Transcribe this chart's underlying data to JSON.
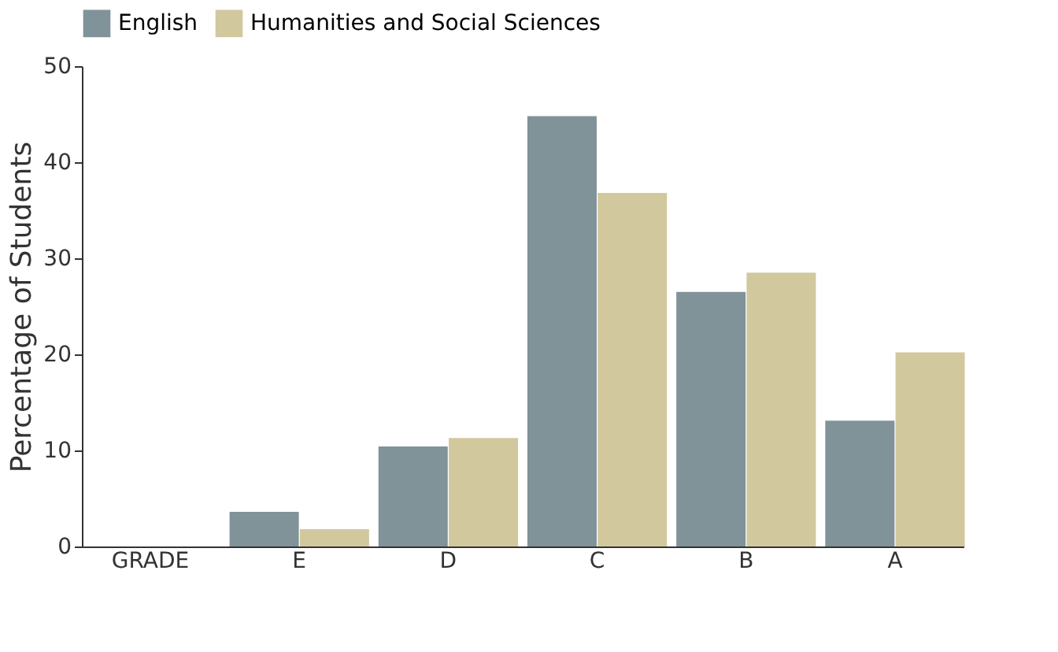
{
  "chart_data": {
    "type": "bar",
    "ylabel": "Percentage of Students",
    "categories": [
      "GRADE",
      "E",
      "D",
      "C",
      "B",
      "A"
    ],
    "series": [
      {
        "name": "English",
        "color": "#7f9399",
        "values": [
          null,
          3.6,
          10.4,
          44.8,
          26.5,
          13.1
        ]
      },
      {
        "name": "Humanities and Social Sciences",
        "color": "#d2c89e",
        "values": [
          null,
          1.8,
          11.3,
          36.8,
          28.5,
          20.2
        ]
      }
    ],
    "ylim": [
      0,
      50
    ],
    "yticks": [
      0,
      10,
      20,
      30,
      40,
      50
    ],
    "grid": false,
    "legend": "top"
  }
}
